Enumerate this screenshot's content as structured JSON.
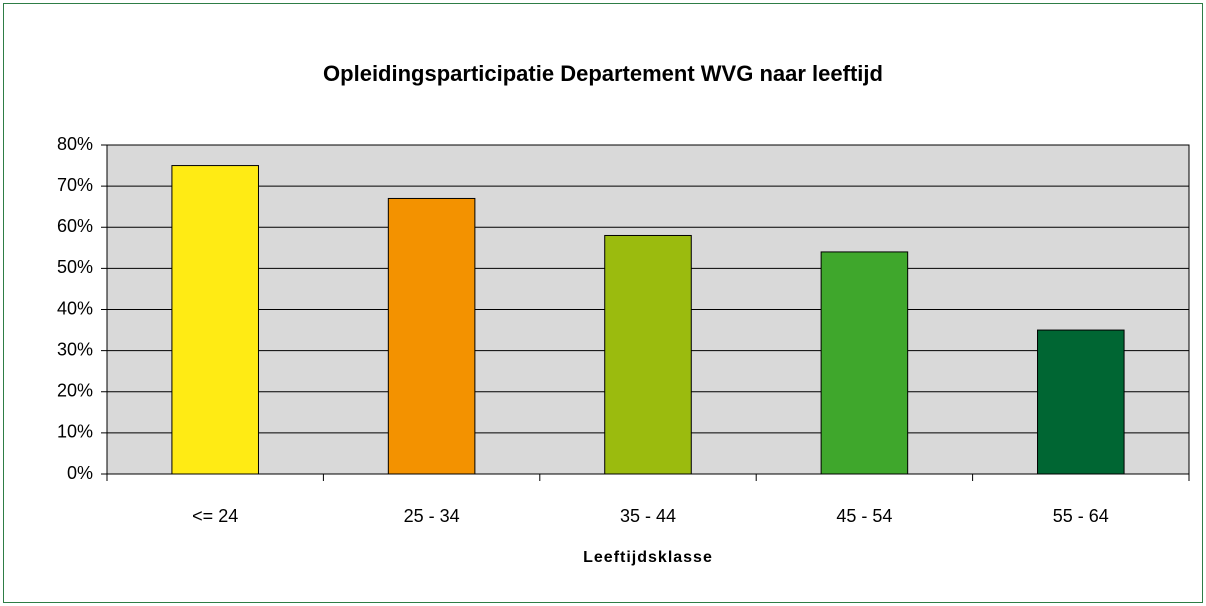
{
  "chart_data": {
    "type": "bar",
    "title": "Opleidingsparticipatie Departement WVG naar leeftijd",
    "x_label": "Leeftijdsklasse",
    "categories": [
      "<= 24",
      "25 - 34",
      "35 - 44",
      "45 - 54",
      "55 - 64"
    ],
    "values": [
      75,
      67,
      58,
      54,
      35
    ],
    "colors": [
      "#ffeb14",
      "#f39200",
      "#9bbb0e",
      "#3fa72c",
      "#006633"
    ],
    "ylim": [
      0,
      80
    ],
    "yticks": [
      {
        "value": 0,
        "label": "0%"
      },
      {
        "value": 10,
        "label": "10%"
      },
      {
        "value": 20,
        "label": "20%"
      },
      {
        "value": 30,
        "label": "30%"
      },
      {
        "value": 40,
        "label": "40%"
      },
      {
        "value": 50,
        "label": "50%"
      },
      {
        "value": 60,
        "label": "60%"
      },
      {
        "value": 70,
        "label": "70%"
      },
      {
        "value": 80,
        "label": "80%"
      }
    ],
    "grid": true
  }
}
